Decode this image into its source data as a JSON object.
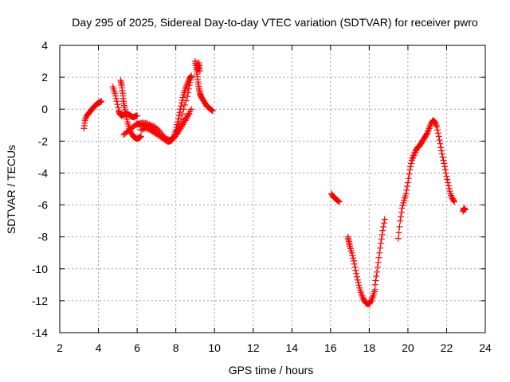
{
  "chart_data": {
    "type": "scatter",
    "title": "Day 295 of 2025, Sidereal Day-to-day VTEC variation (SDTVAR) for receiver pwro",
    "xlabel": "GPS time / hours",
    "ylabel": "SDTVAR / TECUs",
    "xlim": [
      2,
      24
    ],
    "ylim": [
      -14,
      4
    ],
    "xticks": [
      2,
      4,
      6,
      8,
      10,
      12,
      14,
      16,
      18,
      20,
      22,
      24
    ],
    "yticks": [
      -14,
      -12,
      -10,
      -8,
      -6,
      -4,
      -2,
      0,
      2,
      4
    ],
    "x_tick_labels": [
      "2",
      "4",
      "6",
      "8",
      "10",
      "12",
      "14",
      "16",
      "18",
      "20",
      "22",
      "24"
    ],
    "y_tick_labels": [
      "-14",
      "-12",
      "-10",
      "-8",
      "-6",
      "-4",
      "-2",
      "0",
      "2",
      "4"
    ],
    "grid": true,
    "marker": "+",
    "color": "#ff0000",
    "series": [
      {
        "name": "segment-1",
        "x": [
          3.25,
          3.3,
          3.4,
          3.5,
          3.6,
          3.7,
          3.8,
          3.9,
          4.0,
          4.1,
          4.15
        ],
        "y": [
          -1.2,
          -0.7,
          -0.4,
          -0.25,
          -0.1,
          0.05,
          0.2,
          0.3,
          0.4,
          0.45,
          0.5
        ]
      },
      {
        "name": "segment-2",
        "x": [
          4.75,
          4.85,
          4.95,
          5.05,
          5.1,
          5.2,
          5.3,
          5.4,
          5.5,
          5.6,
          5.7,
          5.8,
          5.9,
          6.0
        ],
        "y": [
          1.4,
          1.0,
          0.5,
          -0.1,
          -0.3,
          -0.4,
          -0.35,
          -0.3,
          -0.3,
          -0.35,
          -0.45,
          -0.5,
          -0.45,
          -0.4
        ]
      },
      {
        "name": "segment-3",
        "x": [
          5.15,
          5.2,
          5.25,
          5.3,
          5.35,
          5.4,
          5.5,
          5.6,
          5.7,
          5.8,
          5.9,
          6.0,
          6.1,
          6.2
        ],
        "y": [
          1.8,
          1.5,
          1.0,
          0.5,
          0.1,
          -0.3,
          -0.8,
          -1.2,
          -1.5,
          -1.7,
          -1.8,
          -1.85,
          -1.8,
          -1.7
        ]
      },
      {
        "name": "segment-4",
        "x": [
          5.3,
          5.5,
          5.7,
          5.9,
          6.1,
          6.3,
          6.5,
          6.7,
          6.9,
          7.1,
          7.3,
          7.5,
          7.7,
          7.9,
          8.1,
          8.3,
          8.5,
          8.7
        ],
        "y": [
          -1.6,
          -1.4,
          -1.2,
          -1.0,
          -0.9,
          -0.85,
          -0.9,
          -1.0,
          -1.1,
          -1.3,
          -1.6,
          -1.85,
          -1.95,
          -1.8,
          -1.5,
          -1.1,
          -0.7,
          -0.3
        ]
      },
      {
        "name": "segment-5",
        "x": [
          6.0,
          6.2,
          6.4,
          6.6,
          6.8,
          7.0,
          7.2,
          7.4,
          7.6,
          7.8,
          8.0,
          8.2,
          8.4,
          8.6,
          8.8
        ],
        "y": [
          -0.9,
          -1.0,
          -1.1,
          -1.25,
          -1.4,
          -1.55,
          -1.7,
          -1.85,
          -2.0,
          -1.9,
          -1.6,
          -1.2,
          -0.8,
          -0.4,
          0.0
        ]
      },
      {
        "name": "segment-6",
        "x": [
          6.2,
          6.4,
          6.6,
          6.8,
          7.0,
          7.2,
          7.4,
          7.6,
          7.8,
          8.0,
          8.2,
          8.4,
          8.6,
          8.7,
          8.8
        ],
        "y": [
          -1.3,
          -1.2,
          -1.2,
          -1.3,
          -1.5,
          -1.7,
          -1.9,
          -2.05,
          -1.95,
          -1.6,
          -0.9,
          0.0,
          0.8,
          1.5,
          2.0
        ]
      },
      {
        "name": "segment-7",
        "x": [
          7.6,
          7.7,
          7.8,
          7.9,
          8.0,
          8.1,
          8.2,
          8.3,
          8.4,
          8.5,
          8.6,
          8.7,
          8.8
        ],
        "y": [
          -2.0,
          -2.0,
          -1.9,
          -1.7,
          -1.3,
          -0.8,
          -0.2,
          0.4,
          0.9,
          1.3,
          1.6,
          1.9,
          2.1
        ]
      },
      {
        "name": "segment-8",
        "x": [
          9.0,
          9.05,
          9.1,
          9.15,
          9.2,
          9.25,
          9.3,
          9.4,
          9.5,
          9.6,
          9.7,
          9.8,
          9.9
        ],
        "y": [
          3.0,
          2.6,
          2.2,
          1.7,
          1.3,
          1.0,
          0.8,
          0.6,
          0.4,
          0.2,
          0.1,
          0.0,
          -0.1
        ]
      },
      {
        "name": "segment-9",
        "x": [
          9.1,
          9.15,
          9.2,
          9.25
        ],
        "y": [
          2.9,
          2.5,
          2.9,
          2.4
        ]
      },
      {
        "name": "segment-10",
        "x": [
          16.05,
          16.15,
          16.25,
          16.35,
          16.45
        ],
        "y": [
          -5.3,
          -5.5,
          -5.6,
          -5.7,
          -5.8
        ]
      },
      {
        "name": "segment-11",
        "x": [
          16.9,
          16.95,
          17.0,
          17.1,
          17.2,
          17.3,
          17.4,
          17.5,
          17.6,
          17.7,
          17.8,
          17.9,
          18.0,
          18.1,
          18.2,
          18.3
        ],
        "y": [
          -8.0,
          -8.3,
          -8.6,
          -9.0,
          -9.5,
          -10.1,
          -10.7,
          -11.2,
          -11.6,
          -11.9,
          -12.1,
          -12.2,
          -12.2,
          -12.0,
          -11.7,
          -11.3
        ]
      },
      {
        "name": "segment-12",
        "x": [
          18.3,
          18.4,
          18.5,
          18.6,
          18.7,
          18.8
        ],
        "y": [
          -11.0,
          -10.2,
          -9.3,
          -8.4,
          -7.6,
          -6.9
        ]
      },
      {
        "name": "segment-13",
        "x": [
          19.5,
          19.6,
          19.7,
          19.8,
          19.9,
          20.0,
          20.1,
          20.2,
          20.3,
          20.4,
          20.5,
          20.6,
          20.7,
          20.8,
          20.9,
          21.0,
          21.1,
          21.2,
          21.3,
          21.4,
          21.5,
          21.6,
          21.7,
          21.8,
          21.9,
          22.0,
          22.1,
          22.2,
          22.3,
          22.4
        ],
        "y": [
          -8.1,
          -7.0,
          -6.2,
          -5.7,
          -5.3,
          -4.6,
          -3.8,
          -3.2,
          -2.9,
          -2.6,
          -2.4,
          -2.3,
          -2.1,
          -1.9,
          -1.7,
          -1.5,
          -1.2,
          -0.9,
          -0.7,
          -0.8,
          -1.1,
          -1.7,
          -2.4,
          -3.0,
          -3.6,
          -4.2,
          -4.8,
          -5.3,
          -5.6,
          -5.8
        ]
      },
      {
        "name": "segment-14",
        "x": [
          22.85,
          22.9,
          22.95
        ],
        "y": [
          -6.4,
          -6.2,
          -6.3
        ]
      }
    ]
  }
}
